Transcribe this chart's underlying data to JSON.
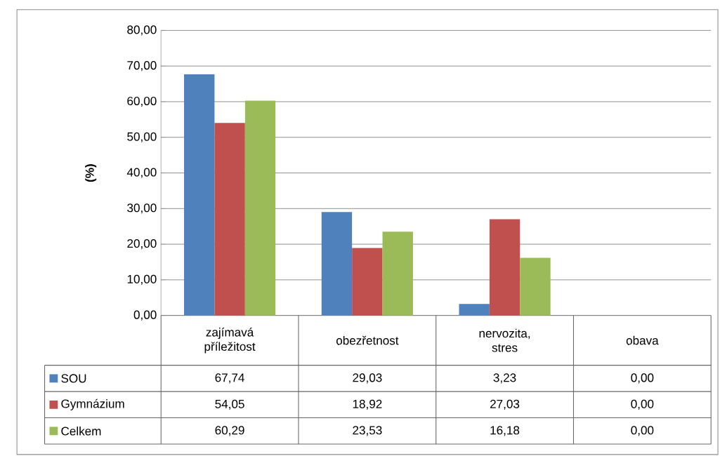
{
  "chart_data": {
    "type": "bar",
    "ylabel": "(%)",
    "categories": [
      "zajímavá příležitost",
      "obezřetnost",
      "nervozita, stres",
      "obava"
    ],
    "series": [
      {
        "name": "SOU",
        "color": "#4f81bd",
        "values": [
          67.74,
          29.03,
          3.23,
          0.0
        ],
        "value_labels": [
          "67,74",
          "29,03",
          "3,23",
          "0,00"
        ]
      },
      {
        "name": "Gymnázium",
        "color": "#c0504d",
        "values": [
          54.05,
          18.92,
          27.03,
          0.0
        ],
        "value_labels": [
          "54,05",
          "18,92",
          "27,03",
          "0,00"
        ]
      },
      {
        "name": "Celkem",
        "color": "#9bbb59",
        "values": [
          60.29,
          23.53,
          16.18,
          0.0
        ],
        "value_labels": [
          "60,29",
          "23,53",
          "16,18",
          "0,00"
        ]
      }
    ],
    "ylim": [
      0,
      80
    ],
    "yticks": [
      {
        "value": 0,
        "label": "0,00"
      },
      {
        "value": 10,
        "label": "10,00"
      },
      {
        "value": 20,
        "label": "20,00"
      },
      {
        "value": 30,
        "label": "30,00"
      },
      {
        "value": 40,
        "label": "40,00"
      },
      {
        "value": 50,
        "label": "50,00"
      },
      {
        "value": 60,
        "label": "60,00"
      },
      {
        "value": 70,
        "label": "70,00"
      },
      {
        "value": 80,
        "label": "80,00"
      }
    ],
    "grid": "y",
    "legend": "bottom"
  }
}
